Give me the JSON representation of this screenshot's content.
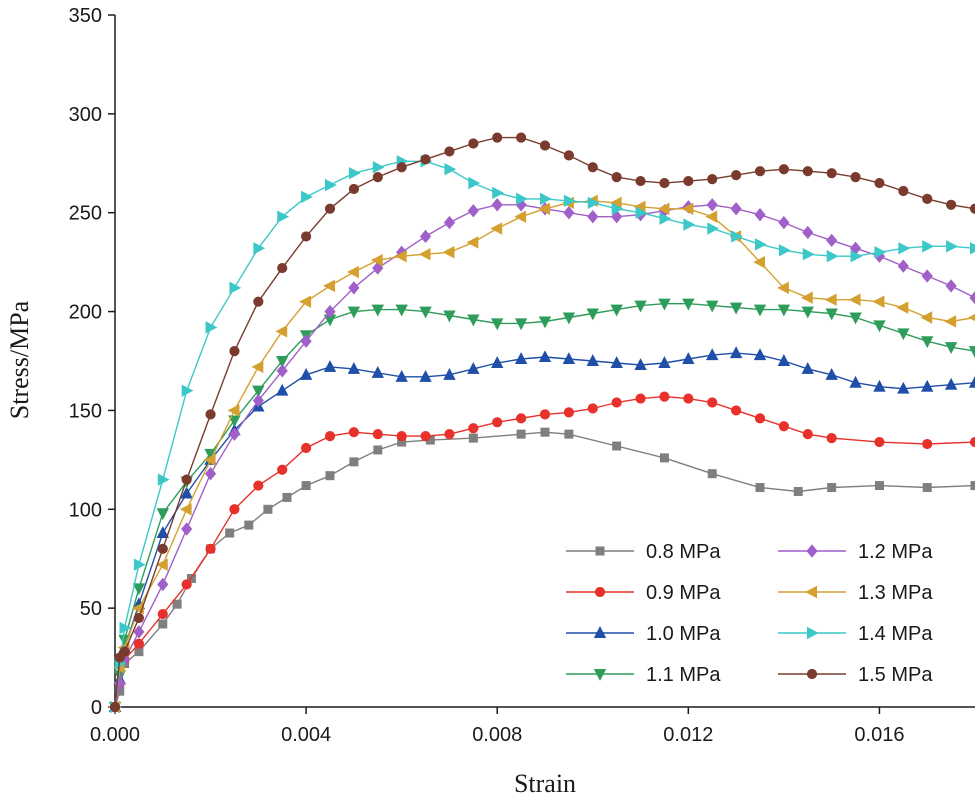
{
  "chart_data": {
    "type": "line",
    "title": "",
    "xlabel": "Strain",
    "ylabel": "Stress/MPa",
    "xlim": [
      0,
      0.018
    ],
    "ylim": [
      0,
      350
    ],
    "xticks": [
      0,
      0.004,
      0.008,
      0.012,
      0.016
    ],
    "xtick_labels": [
      "0.000",
      "0.004",
      "0.008",
      "0.012",
      "0.016"
    ],
    "yticks": [
      0,
      50,
      100,
      150,
      200,
      250,
      300,
      350
    ],
    "ytick_labels": [
      "0",
      "50",
      "100",
      "150",
      "200",
      "250",
      "300",
      "350"
    ],
    "grid": false,
    "legend_position": "bottom-right",
    "series": [
      {
        "name": "0.8 MPa",
        "color": "#7f7f7f",
        "marker": "square",
        "points": [
          [
            0,
            0
          ],
          [
            0.0001,
            8
          ],
          [
            0.0002,
            22
          ],
          [
            0.0005,
            28
          ],
          [
            0.001,
            42
          ],
          [
            0.0013,
            52
          ],
          [
            0.0016,
            65
          ],
          [
            0.002,
            80
          ],
          [
            0.0024,
            88
          ],
          [
            0.0028,
            92
          ],
          [
            0.0032,
            100
          ],
          [
            0.0036,
            106
          ],
          [
            0.004,
            112
          ],
          [
            0.0045,
            117
          ],
          [
            0.005,
            124
          ],
          [
            0.0055,
            130
          ],
          [
            0.006,
            134
          ],
          [
            0.0066,
            135
          ],
          [
            0.0075,
            136
          ],
          [
            0.0085,
            138
          ],
          [
            0.009,
            139
          ],
          [
            0.0095,
            138
          ],
          [
            0.0105,
            132
          ],
          [
            0.0115,
            126
          ],
          [
            0.0125,
            118
          ],
          [
            0.0135,
            111
          ],
          [
            0.0143,
            109
          ],
          [
            0.015,
            111
          ],
          [
            0.016,
            112
          ],
          [
            0.017,
            111
          ],
          [
            0.018,
            112
          ]
        ]
      },
      {
        "name": "0.9 MPa",
        "color": "#e8312a",
        "marker": "circle",
        "points": [
          [
            0,
            0
          ],
          [
            0.0001,
            12
          ],
          [
            0.0002,
            24
          ],
          [
            0.0005,
            32
          ],
          [
            0.001,
            47
          ],
          [
            0.0015,
            62
          ],
          [
            0.002,
            80
          ],
          [
            0.0025,
            100
          ],
          [
            0.003,
            112
          ],
          [
            0.0035,
            120
          ],
          [
            0.004,
            131
          ],
          [
            0.0045,
            137
          ],
          [
            0.005,
            139
          ],
          [
            0.0055,
            138
          ],
          [
            0.006,
            137
          ],
          [
            0.0065,
            137
          ],
          [
            0.007,
            138
          ],
          [
            0.0075,
            141
          ],
          [
            0.008,
            144
          ],
          [
            0.0085,
            146
          ],
          [
            0.009,
            148
          ],
          [
            0.0095,
            149
          ],
          [
            0.01,
            151
          ],
          [
            0.0105,
            154
          ],
          [
            0.011,
            156
          ],
          [
            0.0115,
            157
          ],
          [
            0.012,
            156
          ],
          [
            0.0125,
            154
          ],
          [
            0.013,
            150
          ],
          [
            0.0135,
            146
          ],
          [
            0.014,
            142
          ],
          [
            0.0145,
            138
          ],
          [
            0.015,
            136
          ],
          [
            0.016,
            134
          ],
          [
            0.017,
            133
          ],
          [
            0.018,
            134
          ]
        ]
      },
      {
        "name": "1.0 MPa",
        "color": "#1f4fa8",
        "marker": "triangle-up",
        "points": [
          [
            0,
            0
          ],
          [
            0.0001,
            14
          ],
          [
            0.0002,
            30
          ],
          [
            0.0005,
            52
          ],
          [
            0.001,
            88
          ],
          [
            0.0015,
            108
          ],
          [
            0.002,
            125
          ],
          [
            0.0025,
            140
          ],
          [
            0.003,
            152
          ],
          [
            0.0035,
            160
          ],
          [
            0.004,
            168
          ],
          [
            0.0045,
            172
          ],
          [
            0.005,
            171
          ],
          [
            0.0055,
            169
          ],
          [
            0.006,
            167
          ],
          [
            0.0065,
            167
          ],
          [
            0.007,
            168
          ],
          [
            0.0075,
            171
          ],
          [
            0.008,
            174
          ],
          [
            0.0085,
            176
          ],
          [
            0.009,
            177
          ],
          [
            0.0095,
            176
          ],
          [
            0.01,
            175
          ],
          [
            0.0105,
            174
          ],
          [
            0.011,
            173
          ],
          [
            0.0115,
            174
          ],
          [
            0.012,
            176
          ],
          [
            0.0125,
            178
          ],
          [
            0.013,
            179
          ],
          [
            0.0135,
            178
          ],
          [
            0.014,
            175
          ],
          [
            0.0145,
            171
          ],
          [
            0.015,
            168
          ],
          [
            0.0155,
            164
          ],
          [
            0.016,
            162
          ],
          [
            0.0165,
            161
          ],
          [
            0.017,
            162
          ],
          [
            0.0175,
            163
          ],
          [
            0.018,
            164
          ]
        ]
      },
      {
        "name": "1.1 MPa",
        "color": "#2e9c5a",
        "marker": "triangle-down",
        "points": [
          [
            0,
            0
          ],
          [
            0.0001,
            16
          ],
          [
            0.0002,
            34
          ],
          [
            0.0005,
            60
          ],
          [
            0.001,
            98
          ],
          [
            0.0015,
            114
          ],
          [
            0.002,
            128
          ],
          [
            0.0025,
            145
          ],
          [
            0.003,
            160
          ],
          [
            0.0035,
            175
          ],
          [
            0.004,
            188
          ],
          [
            0.0045,
            196
          ],
          [
            0.005,
            200
          ],
          [
            0.0055,
            201
          ],
          [
            0.006,
            201
          ],
          [
            0.0065,
            200
          ],
          [
            0.007,
            198
          ],
          [
            0.0075,
            196
          ],
          [
            0.008,
            194
          ],
          [
            0.0085,
            194
          ],
          [
            0.009,
            195
          ],
          [
            0.0095,
            197
          ],
          [
            0.01,
            199
          ],
          [
            0.0105,
            201
          ],
          [
            0.011,
            203
          ],
          [
            0.0115,
            204
          ],
          [
            0.012,
            204
          ],
          [
            0.0125,
            203
          ],
          [
            0.013,
            202
          ],
          [
            0.0135,
            201
          ],
          [
            0.014,
            201
          ],
          [
            0.0145,
            200
          ],
          [
            0.015,
            199
          ],
          [
            0.0155,
            197
          ],
          [
            0.016,
            193
          ],
          [
            0.0165,
            189
          ],
          [
            0.017,
            185
          ],
          [
            0.0175,
            182
          ],
          [
            0.018,
            180
          ]
        ]
      },
      {
        "name": "1.2 MPa",
        "color": "#a15fc9",
        "marker": "diamond",
        "points": [
          [
            0,
            0
          ],
          [
            0.0001,
            12
          ],
          [
            0.0002,
            24
          ],
          [
            0.0005,
            38
          ],
          [
            0.001,
            62
          ],
          [
            0.0015,
            90
          ],
          [
            0.002,
            118
          ],
          [
            0.0025,
            138
          ],
          [
            0.003,
            155
          ],
          [
            0.0035,
            170
          ],
          [
            0.004,
            185
          ],
          [
            0.0045,
            200
          ],
          [
            0.005,
            212
          ],
          [
            0.0055,
            222
          ],
          [
            0.006,
            230
          ],
          [
            0.0065,
            238
          ],
          [
            0.007,
            245
          ],
          [
            0.0075,
            251
          ],
          [
            0.008,
            254
          ],
          [
            0.0085,
            254
          ],
          [
            0.009,
            252
          ],
          [
            0.0095,
            250
          ],
          [
            0.01,
            248
          ],
          [
            0.0105,
            248
          ],
          [
            0.011,
            249
          ],
          [
            0.0115,
            251
          ],
          [
            0.012,
            253
          ],
          [
            0.0125,
            254
          ],
          [
            0.013,
            252
          ],
          [
            0.0135,
            249
          ],
          [
            0.014,
            245
          ],
          [
            0.0145,
            240
          ],
          [
            0.015,
            236
          ],
          [
            0.0155,
            232
          ],
          [
            0.016,
            228
          ],
          [
            0.0165,
            223
          ],
          [
            0.017,
            218
          ],
          [
            0.0175,
            213
          ],
          [
            0.018,
            207
          ]
        ]
      },
      {
        "name": "1.3 MPa",
        "color": "#d4a030",
        "marker": "triangle-left",
        "points": [
          [
            0,
            0
          ],
          [
            0.0001,
            20
          ],
          [
            0.0002,
            30
          ],
          [
            0.0005,
            50
          ],
          [
            0.001,
            72
          ],
          [
            0.0015,
            100
          ],
          [
            0.002,
            125
          ],
          [
            0.0025,
            150
          ],
          [
            0.003,
            172
          ],
          [
            0.0035,
            190
          ],
          [
            0.004,
            205
          ],
          [
            0.0045,
            213
          ],
          [
            0.005,
            220
          ],
          [
            0.0055,
            226
          ],
          [
            0.006,
            228
          ],
          [
            0.0065,
            229
          ],
          [
            0.007,
            230
          ],
          [
            0.0075,
            235
          ],
          [
            0.008,
            242
          ],
          [
            0.0085,
            248
          ],
          [
            0.009,
            252
          ],
          [
            0.0095,
            255
          ],
          [
            0.01,
            256
          ],
          [
            0.0105,
            255
          ],
          [
            0.011,
            253
          ],
          [
            0.0115,
            252
          ],
          [
            0.012,
            252
          ],
          [
            0.0125,
            248
          ],
          [
            0.013,
            238
          ],
          [
            0.0135,
            225
          ],
          [
            0.014,
            212
          ],
          [
            0.0145,
            207
          ],
          [
            0.015,
            206
          ],
          [
            0.0155,
            206
          ],
          [
            0.016,
            205
          ],
          [
            0.0165,
            202
          ],
          [
            0.017,
            197
          ],
          [
            0.0175,
            195
          ],
          [
            0.018,
            197
          ]
        ]
      },
      {
        "name": "1.4 MPa",
        "color": "#3cc8c8",
        "marker": "triangle-right",
        "points": [
          [
            0,
            0
          ],
          [
            0.0001,
            22
          ],
          [
            0.0002,
            40
          ],
          [
            0.0005,
            72
          ],
          [
            0.001,
            115
          ],
          [
            0.0015,
            160
          ],
          [
            0.002,
            192
          ],
          [
            0.0025,
            212
          ],
          [
            0.003,
            232
          ],
          [
            0.0035,
            248
          ],
          [
            0.004,
            258
          ],
          [
            0.0045,
            264
          ],
          [
            0.005,
            270
          ],
          [
            0.0055,
            273
          ],
          [
            0.006,
            276
          ],
          [
            0.0065,
            276
          ],
          [
            0.007,
            272
          ],
          [
            0.0075,
            265
          ],
          [
            0.008,
            260
          ],
          [
            0.0085,
            257
          ],
          [
            0.009,
            257
          ],
          [
            0.0095,
            256
          ],
          [
            0.01,
            255
          ],
          [
            0.0105,
            252
          ],
          [
            0.011,
            250
          ],
          [
            0.0115,
            247
          ],
          [
            0.012,
            244
          ],
          [
            0.0125,
            242
          ],
          [
            0.013,
            238
          ],
          [
            0.0135,
            234
          ],
          [
            0.014,
            231
          ],
          [
            0.0145,
            229
          ],
          [
            0.015,
            228
          ],
          [
            0.0155,
            228
          ],
          [
            0.016,
            230
          ],
          [
            0.0165,
            232
          ],
          [
            0.017,
            233
          ],
          [
            0.0175,
            233
          ],
          [
            0.018,
            232
          ]
        ]
      },
      {
        "name": "1.5 MPa",
        "color": "#7a3b2e",
        "marker": "circle",
        "points": [
          [
            0,
            0
          ],
          [
            0.0001,
            25
          ],
          [
            0.0002,
            28
          ],
          [
            0.0005,
            45
          ],
          [
            0.001,
            80
          ],
          [
            0.0015,
            115
          ],
          [
            0.002,
            148
          ],
          [
            0.0025,
            180
          ],
          [
            0.003,
            205
          ],
          [
            0.0035,
            222
          ],
          [
            0.004,
            238
          ],
          [
            0.0045,
            252
          ],
          [
            0.005,
            262
          ],
          [
            0.0055,
            268
          ],
          [
            0.006,
            273
          ],
          [
            0.0065,
            277
          ],
          [
            0.007,
            281
          ],
          [
            0.0075,
            285
          ],
          [
            0.008,
            288
          ],
          [
            0.0085,
            288
          ],
          [
            0.009,
            284
          ],
          [
            0.0095,
            279
          ],
          [
            0.01,
            273
          ],
          [
            0.0105,
            268
          ],
          [
            0.011,
            266
          ],
          [
            0.0115,
            265
          ],
          [
            0.012,
            266
          ],
          [
            0.0125,
            267
          ],
          [
            0.013,
            269
          ],
          [
            0.0135,
            271
          ],
          [
            0.014,
            272
          ],
          [
            0.0145,
            271
          ],
          [
            0.015,
            270
          ],
          [
            0.0155,
            268
          ],
          [
            0.016,
            265
          ],
          [
            0.0165,
            261
          ],
          [
            0.017,
            257
          ],
          [
            0.0175,
            254
          ],
          [
            0.018,
            252
          ]
        ]
      }
    ]
  }
}
